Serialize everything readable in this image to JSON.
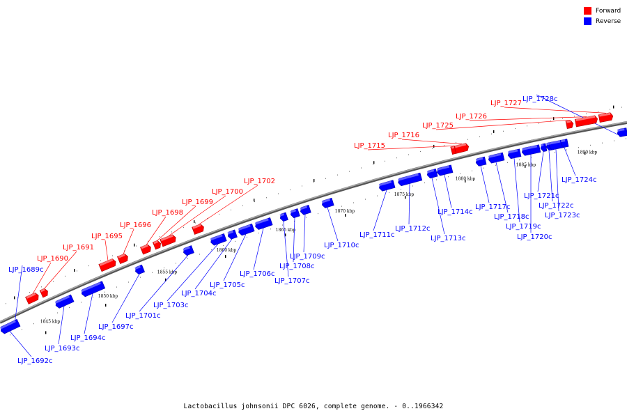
{
  "legend": {
    "forward_label": "Forward",
    "reverse_label": "Reverse",
    "forward_color": "#ff0000",
    "reverse_color": "#0000ff"
  },
  "caption": "Lactobacillus johnsonii DPC 6026, complete genome. - 0..1966342",
  "scale": {
    "unit": "kbp",
    "ticks": [
      "1845 kbp",
      "1850 kbp",
      "1855 kbp",
      "1860 kbp",
      "1865 kbp",
      "1870 kbp",
      "1875 kbp",
      "1880 kbp",
      "1885 kbp",
      "1890 kbp"
    ]
  },
  "genes": [
    {
      "name": "LJP_1689c",
      "strand": "reverse"
    },
    {
      "name": "LJP_1690",
      "strand": "forward"
    },
    {
      "name": "LJP_1691",
      "strand": "forward"
    },
    {
      "name": "LJP_1692c",
      "strand": "reverse"
    },
    {
      "name": "LJP_1693c",
      "strand": "reverse"
    },
    {
      "name": "LJP_1694c",
      "strand": "reverse"
    },
    {
      "name": "LJP_1695",
      "strand": "forward"
    },
    {
      "name": "LJP_1696",
      "strand": "forward"
    },
    {
      "name": "LJP_1697c",
      "strand": "reverse"
    },
    {
      "name": "LJP_1698",
      "strand": "forward"
    },
    {
      "name": "LJP_1699",
      "strand": "forward"
    },
    {
      "name": "LJP_1700",
      "strand": "forward"
    },
    {
      "name": "LJP_1701c",
      "strand": "reverse"
    },
    {
      "name": "LJP_1702",
      "strand": "forward"
    },
    {
      "name": "LJP_1703c",
      "strand": "reverse"
    },
    {
      "name": "LJP_1704c",
      "strand": "reverse"
    },
    {
      "name": "LJP_1705c",
      "strand": "reverse"
    },
    {
      "name": "LJP_1706c",
      "strand": "reverse"
    },
    {
      "name": "LJP_1707c",
      "strand": "reverse"
    },
    {
      "name": "LJP_1708c",
      "strand": "reverse"
    },
    {
      "name": "LJP_1709c",
      "strand": "reverse"
    },
    {
      "name": "LJP_1710c",
      "strand": "reverse"
    },
    {
      "name": "LJP_1711c",
      "strand": "reverse"
    },
    {
      "name": "LJP_1712c",
      "strand": "reverse"
    },
    {
      "name": "LJP_1713c",
      "strand": "reverse"
    },
    {
      "name": "LJP_1714c",
      "strand": "reverse"
    },
    {
      "name": "LJP_1715",
      "strand": "forward"
    },
    {
      "name": "LJP_1716",
      "strand": "forward"
    },
    {
      "name": "LJP_1717c",
      "strand": "reverse"
    },
    {
      "name": "LJP_1718c",
      "strand": "reverse"
    },
    {
      "name": "LJP_1719c",
      "strand": "reverse"
    },
    {
      "name": "LJP_1720c",
      "strand": "reverse"
    },
    {
      "name": "LJP_1721c",
      "strand": "reverse"
    },
    {
      "name": "LJP_1722c",
      "strand": "reverse"
    },
    {
      "name": "LJP_1723c",
      "strand": "reverse"
    },
    {
      "name": "LJP_1724c",
      "strand": "reverse"
    },
    {
      "name": "LJP_1725",
      "strand": "forward"
    },
    {
      "name": "LJP_1726",
      "strand": "forward"
    },
    {
      "name": "LJP_1727",
      "strand": "forward"
    },
    {
      "name": "LJP_1728c",
      "strand": "reverse"
    }
  ]
}
